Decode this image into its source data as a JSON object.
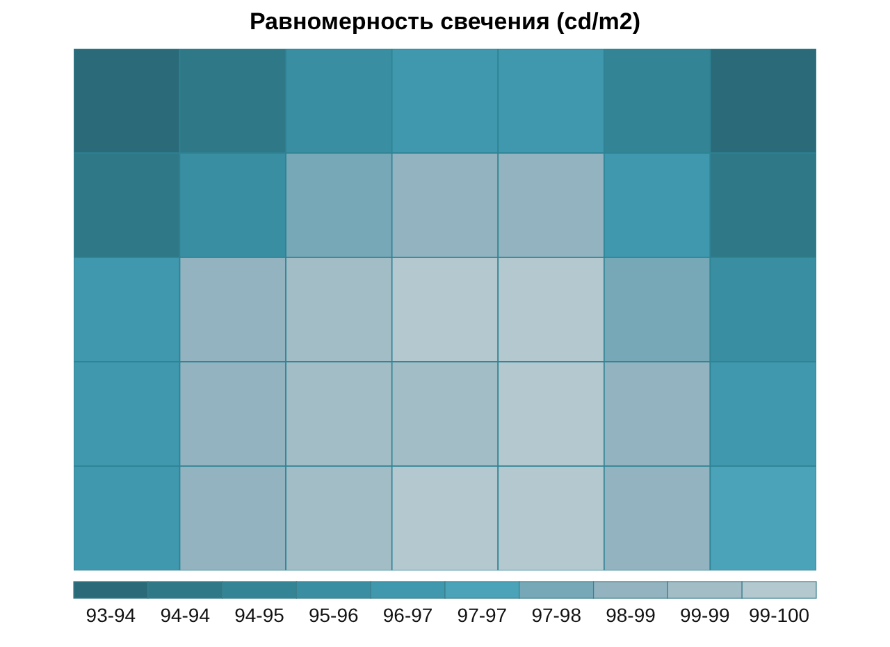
{
  "chart_data": {
    "type": "heatmap",
    "title": "Равномерность свечения (cd/m2)",
    "categories": [
      null,
      null,
      null,
      null,
      null,
      null,
      null
    ],
    "y_categories": [
      null,
      null,
      null,
      null,
      null
    ],
    "cells": [
      [
        93.3,
        94.2,
        95.3,
        96.4,
        95.9,
        94.6,
        93.5
      ],
      [
        94.0,
        95.5,
        97.8,
        98.3,
        98.0,
        96.3,
        94.3
      ],
      [
        96.0,
        98.0,
        98.9,
        99.6,
        99.5,
        97.6,
        95.8
      ],
      [
        96.2,
        98.0,
        98.8,
        99.1,
        99.8,
        98.2,
        96.0
      ],
      [
        96.3,
        98.2,
        98.9,
        99.6,
        99.6,
        98.5,
        96.5
      ]
    ],
    "clim": [
      93,
      100
    ],
    "colors": [
      "#2b6b79",
      "#2f7887",
      "#338595",
      "#3a8ea2",
      "#3f98ae",
      "#4aa3b9",
      "#77a8b7",
      "#92b3bf",
      "#a3bdc6",
      "#b4c8cf"
    ],
    "cticks": [
      {
        "value": 93.35,
        "label": "93-94"
      },
      {
        "value": 94.05,
        "label": "94-94"
      },
      {
        "value": 94.75,
        "label": "94-95"
      },
      {
        "value": 95.45,
        "label": "95-96"
      },
      {
        "value": 96.15,
        "label": "96-97"
      },
      {
        "value": 96.85,
        "label": "97-97"
      },
      {
        "value": 97.55,
        "label": "97-98"
      },
      {
        "value": 98.25,
        "label": "98-99"
      },
      {
        "value": 98.95,
        "label": "99-99"
      },
      {
        "value": 99.65,
        "label": "99-100"
      }
    ],
    "tick_labels": false
  }
}
